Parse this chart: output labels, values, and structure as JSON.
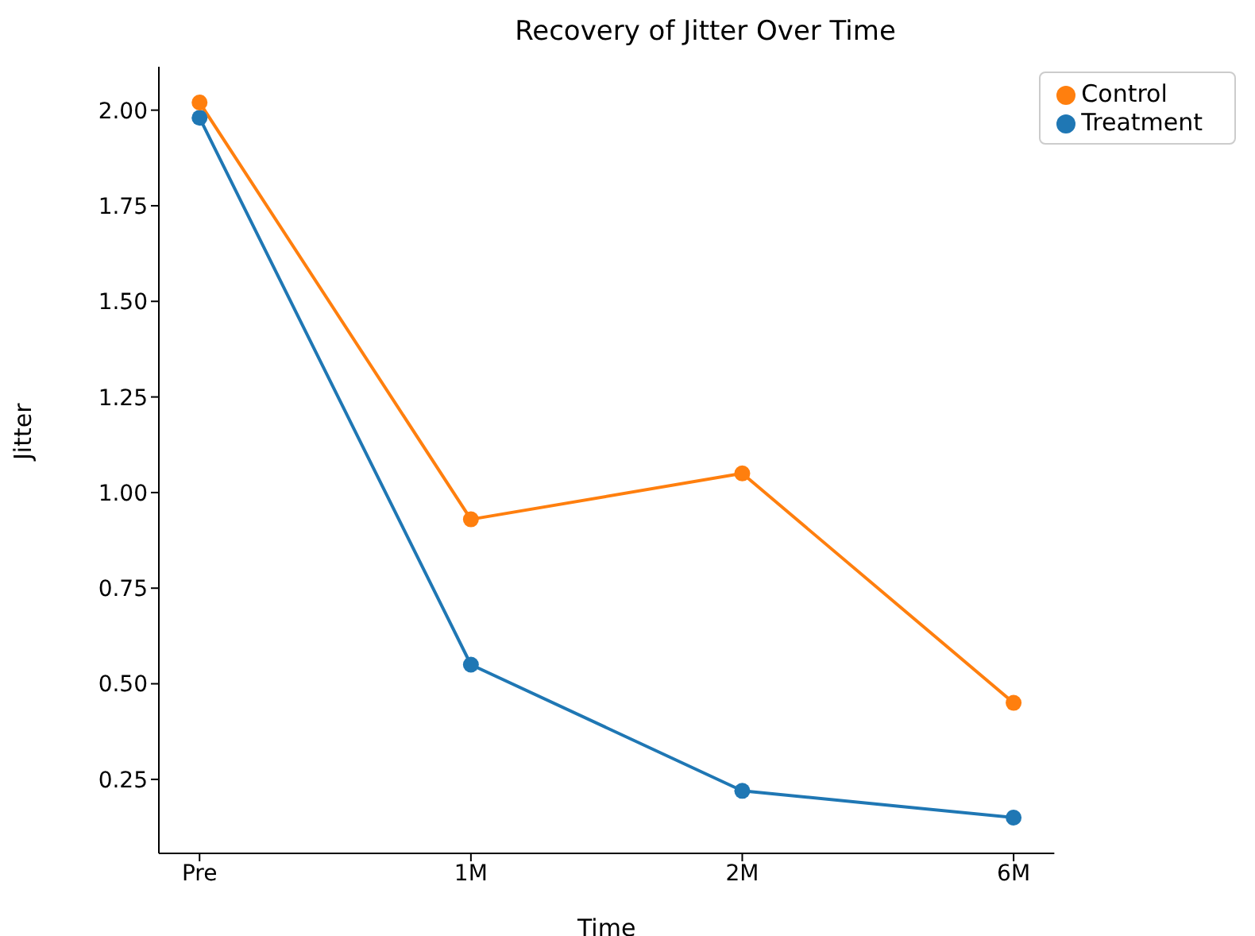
{
  "chart_data": {
    "type": "line",
    "title": "Recovery of Jitter Over Time",
    "xlabel": "Time",
    "ylabel": "Jitter",
    "categories": [
      "Pre",
      "1M",
      "2M",
      "6M"
    ],
    "series": [
      {
        "name": "Treatment",
        "color": "#1f77b4",
        "values": [
          1.98,
          0.55,
          0.22,
          0.15
        ]
      },
      {
        "name": "Control",
        "color": "#ff7f0e",
        "values": [
          2.02,
          0.93,
          1.05,
          0.45
        ]
      }
    ],
    "ylim": [
      0.0565,
      2.1135
    ],
    "yticks": [
      {
        "value": 0.25,
        "label": "0.25"
      },
      {
        "value": 0.5,
        "label": "0.50"
      },
      {
        "value": 0.75,
        "label": "0.75"
      },
      {
        "value": 1,
        "label": "1.00"
      },
      {
        "value": 1.25,
        "label": "1.25"
      },
      {
        "value": 1.5,
        "label": "1.50"
      },
      {
        "value": 1.75,
        "label": "1.75"
      },
      {
        "value": 2,
        "label": "2.00"
      }
    ],
    "grid": false,
    "legend": "top right",
    "marker": "circle",
    "line_style": "solid"
  }
}
